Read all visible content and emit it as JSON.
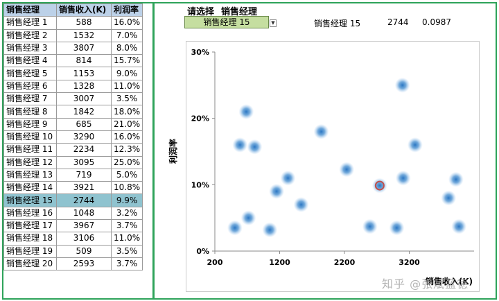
{
  "table": {
    "headers": [
      "销售经理",
      "销售收入(K)",
      "利润率"
    ],
    "rows": [
      [
        "销售经理 1",
        "588",
        "16.0%"
      ],
      [
        "销售经理 2",
        "1532",
        "7.0%"
      ],
      [
        "销售经理 3",
        "3807",
        "8.0%"
      ],
      [
        "销售经理 4",
        "814",
        "15.7%"
      ],
      [
        "销售经理 5",
        "1153",
        "9.0%"
      ],
      [
        "销售经理 6",
        "1328",
        "11.0%"
      ],
      [
        "销售经理 7",
        "3007",
        "3.5%"
      ],
      [
        "销售经理 8",
        "1842",
        "18.0%"
      ],
      [
        "销售经理 9",
        "685",
        "21.0%"
      ],
      [
        "销售经理 10",
        "3290",
        "16.0%"
      ],
      [
        "销售经理 11",
        "2234",
        "12.3%"
      ],
      [
        "销售经理 12",
        "3095",
        "25.0%"
      ],
      [
        "销售经理 13",
        "719",
        "5.0%"
      ],
      [
        "销售经理 14",
        "3921",
        "10.8%"
      ],
      [
        "销售经理 15",
        "2744",
        "9.9%"
      ],
      [
        "销售经理 16",
        "1048",
        "3.2%"
      ],
      [
        "销售经理 17",
        "3967",
        "3.7%"
      ],
      [
        "销售经理 18",
        "3106",
        "11.0%"
      ],
      [
        "销售经理 19",
        "509",
        "3.5%"
      ],
      [
        "销售经理 20",
        "2593",
        "3.7%"
      ]
    ],
    "selected_index": 14
  },
  "selector": {
    "prompt": "请选择",
    "field": "销售经理",
    "value": "销售经理 15",
    "dropdown_icon": "chevron-down-icon"
  },
  "readout": {
    "name": "销售经理 15",
    "revenue": "2744",
    "margin": "0.0987"
  },
  "watermark": "知乎 @张斌蓝德",
  "colors": {
    "frame": "#2ea35a",
    "header": "#bcd1e8",
    "selected_row": "#8fc3cf",
    "selector_bg": "#c5dea0",
    "point": "#5b9bd5",
    "highlight": "#c0504d"
  },
  "chart_data": {
    "type": "scatter",
    "title": "",
    "xlabel": "销售收入(K)",
    "ylabel": "利润率",
    "xlim": [
      200,
      4200
    ],
    "ylim": [
      0,
      0.3
    ],
    "xticks": [
      "200",
      "1200",
      "2200",
      "3200"
    ],
    "xtick_values": [
      200,
      1200,
      2200,
      3200
    ],
    "yticks": [
      "0%",
      "10%",
      "20%",
      "30%"
    ],
    "ytick_values": [
      0,
      0.1,
      0.2,
      0.3
    ],
    "grid": false,
    "points": [
      {
        "x": 588,
        "y": 0.16
      },
      {
        "x": 1532,
        "y": 0.07
      },
      {
        "x": 3807,
        "y": 0.08
      },
      {
        "x": 814,
        "y": 0.157
      },
      {
        "x": 1153,
        "y": 0.09
      },
      {
        "x": 1328,
        "y": 0.11
      },
      {
        "x": 3007,
        "y": 0.035
      },
      {
        "x": 1842,
        "y": 0.18
      },
      {
        "x": 685,
        "y": 0.21
      },
      {
        "x": 3290,
        "y": 0.16
      },
      {
        "x": 2234,
        "y": 0.123
      },
      {
        "x": 3095,
        "y": 0.25
      },
      {
        "x": 719,
        "y": 0.05
      },
      {
        "x": 3921,
        "y": 0.108
      },
      {
        "x": 2744,
        "y": 0.0987
      },
      {
        "x": 1048,
        "y": 0.032
      },
      {
        "x": 3967,
        "y": 0.037
      },
      {
        "x": 3106,
        "y": 0.11
      },
      {
        "x": 509,
        "y": 0.035
      },
      {
        "x": 2593,
        "y": 0.037
      }
    ],
    "highlight": {
      "x": 2744,
      "y": 0.0987
    }
  }
}
